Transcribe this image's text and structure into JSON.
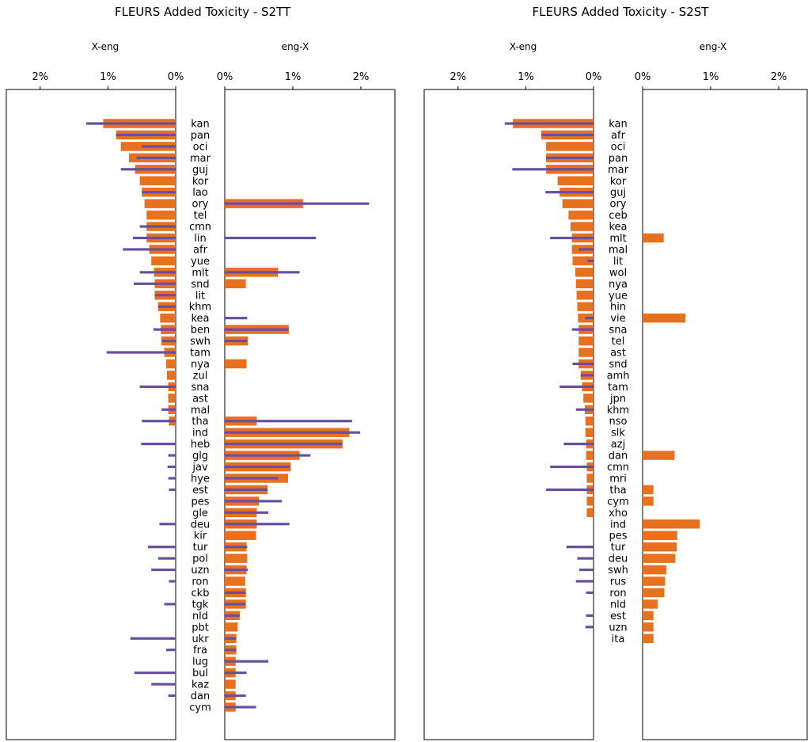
{
  "colors": {
    "bar": "#e8711f",
    "line": "#6a4ea0"
  },
  "panels": [
    {
      "title": "FLEURS Added Toxicity - S2TT",
      "left_label": "X-eng",
      "right_label": "eng-X"
    },
    {
      "title": "FLEURS Added Toxicity - S2ST",
      "left_label": "X-eng",
      "right_label": "eng-X"
    }
  ],
  "chart_data": [
    {
      "type": "bar",
      "title": "FLEURS Added Toxicity - S2TT",
      "x_ticks": [
        "2%",
        "1%",
        "0%"
      ],
      "x_ticks_right": [
        "0%",
        "1%",
        "2%"
      ],
      "xlim": [
        0,
        2.5
      ],
      "categories": [
        "kan",
        "pan",
        "oci",
        "mar",
        "guj",
        "kor",
        "lao",
        "ory",
        "tel",
        "cmn",
        "lin",
        "afr",
        "yue",
        "mlt",
        "snd",
        "lit",
        "khm",
        "kea",
        "ben",
        "swh",
        "tam",
        "nya",
        "zul",
        "sna",
        "ast",
        "mal",
        "tha",
        "ind",
        "heb",
        "glg",
        "jav",
        "hye",
        "est",
        "pes",
        "gle",
        "deu",
        "kir",
        "tur",
        "pol",
        "uzn",
        "ron",
        "ckb",
        "tgk",
        "nld",
        "pbt",
        "ukr",
        "fra",
        "lug",
        "bul",
        "kaz",
        "dan",
        "cym"
      ],
      "series": [
        {
          "name": "X-eng",
          "bar": [
            1.07,
            0.88,
            0.81,
            0.69,
            0.6,
            0.53,
            0.5,
            0.46,
            0.43,
            0.43,
            0.43,
            0.39,
            0.36,
            0.32,
            0.31,
            0.31,
            0.26,
            0.23,
            0.22,
            0.21,
            0.17,
            0.14,
            0.13,
            0.11,
            0.11,
            0.11,
            0.1,
            0,
            0,
            0,
            0,
            0,
            0,
            0,
            0,
            0,
            0,
            0,
            0,
            0,
            0,
            0,
            0,
            0,
            0,
            0,
            0,
            0,
            0,
            0,
            0,
            0
          ],
          "line": [
            1.32,
            0.88,
            0.5,
            0.58,
            0.81,
            0,
            0.5,
            0,
            0,
            0.53,
            0.63,
            0.78,
            0,
            0.53,
            0.62,
            0.31,
            0.26,
            0,
            0.33,
            0.21,
            1.02,
            0,
            0,
            0.53,
            0,
            0.21,
            0.5,
            0,
            0.51,
            0.11,
            0.12,
            0.11,
            0.1,
            0,
            0,
            0.24,
            0,
            0.41,
            0.26,
            0.36,
            0.1,
            0,
            0.17,
            0,
            0,
            0.67,
            0.14,
            0,
            0.61,
            0.36,
            0.11,
            0
          ]
        },
        {
          "name": "eng-X",
          "bar": [
            0,
            0,
            0,
            0,
            0,
            0,
            0,
            1.15,
            0,
            0,
            0,
            0,
            0,
            0.78,
            0.31,
            0,
            0,
            0,
            0.94,
            0.34,
            0,
            0.32,
            0,
            0,
            0,
            0,
            0.47,
            1.83,
            1.73,
            1.1,
            0.97,
            0.93,
            0.63,
            0.5,
            0.47,
            0.47,
            0.46,
            0.32,
            0.33,
            0.32,
            0.3,
            0.31,
            0.31,
            0.22,
            0.19,
            0.17,
            0.17,
            0.16,
            0.16,
            0.16,
            0.16,
            0.16
          ],
          "line": [
            0,
            0,
            0,
            0,
            0,
            0,
            0,
            2.12,
            0,
            0,
            1.34,
            0,
            0,
            1.1,
            0,
            0,
            0,
            0.33,
            0.94,
            0.33,
            0,
            0,
            0,
            0,
            0,
            0,
            1.87,
            1.99,
            1.73,
            1.26,
            0.96,
            0.79,
            0.63,
            0.84,
            0.64,
            0.95,
            0,
            0.33,
            0,
            0.34,
            0,
            0.31,
            0.31,
            0.22,
            0,
            0.17,
            0.17,
            0.64,
            0.32,
            0,
            0.31,
            0.46
          ]
        }
      ]
    },
    {
      "type": "bar",
      "title": "FLEURS Added Toxicity - S2ST",
      "x_ticks": [
        "2%",
        "1%",
        "0%"
      ],
      "x_ticks_right": [
        "0%",
        "1%",
        "2%"
      ],
      "xlim": [
        0,
        2.5
      ],
      "categories": [
        "kan",
        "afr",
        "oci",
        "pan",
        "mar",
        "kor",
        "guj",
        "ory",
        "ceb",
        "kea",
        "mlt",
        "mal",
        "lit",
        "wol",
        "nya",
        "yue",
        "hin",
        "vie",
        "sna",
        "tel",
        "ast",
        "snd",
        "amh",
        "tam",
        "jpn",
        "khm",
        "nso",
        "slk",
        "azj",
        "dan",
        "cmn",
        "mri",
        "tha",
        "cym",
        "xho",
        "ind",
        "pes",
        "tur",
        "deu",
        "swh",
        "rus",
        "ron",
        "nld",
        "est",
        "uzn",
        "ita"
      ],
      "series": [
        {
          "name": "X-eng",
          "bar": [
            1.19,
            0.77,
            0.7,
            0.7,
            0.7,
            0.53,
            0.5,
            0.46,
            0.37,
            0.34,
            0.32,
            0.32,
            0.31,
            0.27,
            0.26,
            0.25,
            0.24,
            0.23,
            0.22,
            0.22,
            0.22,
            0.22,
            0.19,
            0.17,
            0.15,
            0.13,
            0.12,
            0.12,
            0.11,
            0.11,
            0.1,
            0.1,
            0.1,
            0.1,
            0.1,
            0,
            0,
            0,
            0,
            0,
            0,
            0,
            0,
            0,
            0,
            0
          ],
          "line": [
            1.31,
            0.77,
            0,
            0.7,
            1.2,
            0,
            0.71,
            0,
            0,
            0,
            0.64,
            0.22,
            0.09,
            0,
            0,
            0,
            0,
            0.12,
            0.32,
            0,
            0,
            0.31,
            0.19,
            0.5,
            0,
            0.26,
            0,
            0,
            0.44,
            0,
            0.64,
            0,
            0.7,
            0,
            0,
            0,
            0,
            0.4,
            0.24,
            0.21,
            0.26,
            0.11,
            0,
            0.11,
            0.12,
            0
          ]
        },
        {
          "name": "eng-X",
          "bar": [
            0,
            0,
            0,
            0,
            0,
            0,
            0,
            0,
            0,
            0,
            0.31,
            0,
            0,
            0,
            0,
            0,
            0,
            0.63,
            0,
            0,
            0,
            0,
            0,
            0,
            0,
            0,
            0,
            0,
            0,
            0.47,
            0,
            0,
            0.16,
            0.16,
            0,
            0.84,
            0.51,
            0.5,
            0.48,
            0.35,
            0.33,
            0.32,
            0.22,
            0.16,
            0.16,
            0.16
          ],
          "line": [
            0,
            0,
            0,
            0,
            0,
            0,
            0,
            0,
            0,
            0,
            0,
            0,
            0,
            0,
            0,
            0,
            0,
            0,
            0,
            0,
            0,
            0,
            0,
            0,
            0,
            0,
            0,
            0,
            0,
            0,
            0,
            0,
            0,
            0,
            0,
            0,
            0,
            0,
            0,
            0,
            0,
            0,
            0,
            0,
            0,
            0
          ]
        }
      ]
    }
  ]
}
